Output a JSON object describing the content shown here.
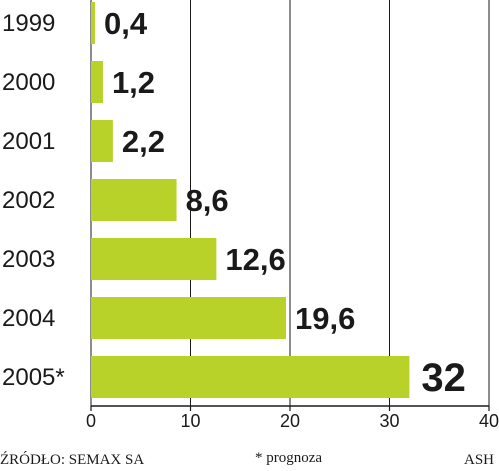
{
  "chart_data": {
    "type": "bar",
    "orientation": "horizontal",
    "categories": [
      "1999",
      "2000",
      "2001",
      "2002",
      "2003",
      "2004",
      "2005*"
    ],
    "values": [
      0.4,
      1.2,
      2.2,
      8.6,
      12.6,
      19.6,
      32
    ],
    "value_labels": [
      "0,4",
      "1,2",
      "2,2",
      "8,6",
      "12,6",
      "19,6",
      "32"
    ],
    "xlim": [
      0,
      40
    ],
    "xticks": [
      0,
      10,
      20,
      30,
      40
    ],
    "grid": "vertical",
    "bar_color": "#b9d22a",
    "highlight_index": 6,
    "highlight_color": "#d6283a",
    "text_color": "#1a1a1a"
  },
  "footer": {
    "source": "ŹRÓDŁO: SEMAX SA",
    "note": "* prognoza",
    "credit": "ASH"
  }
}
